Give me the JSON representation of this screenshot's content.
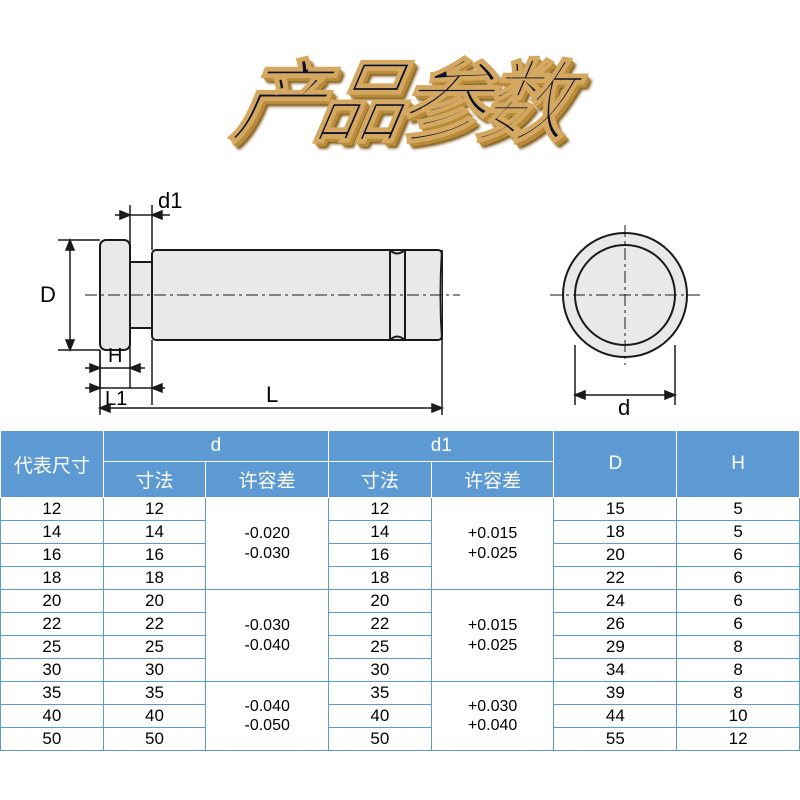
{
  "title": "产品参数",
  "header_color": "#5d9ad4",
  "border_color": "#5d9ad4",
  "title_fill": "#0a0f2a",
  "title_stroke": "#d4a860",
  "diagram": {
    "labels": {
      "D": "D",
      "d1": "d1",
      "H": "H",
      "L1": "L1",
      "L": "L",
      "d": "d"
    },
    "shape_fill": "#e9e9e9",
    "shape_stroke": "#1a1a1a",
    "dim_color": "#1a1a1a"
  },
  "table": {
    "headers": {
      "label": "代表尺寸",
      "d": "d",
      "d1": "d1",
      "val": "寸法",
      "tol": "许容差",
      "D": "D",
      "H": "H"
    },
    "groups": [
      {
        "d_tol_upper": "-0.020",
        "d_tol_lower": "-0.030",
        "d1_tol_upper": "+0.015",
        "d1_tol_lower": "+0.025",
        "rows": [
          {
            "label": "12",
            "d": "12",
            "d1": "12",
            "D": "15",
            "H": "5"
          },
          {
            "label": "14",
            "d": "14",
            "d1": "14",
            "D": "18",
            "H": "5"
          },
          {
            "label": "16",
            "d": "16",
            "d1": "16",
            "D": "20",
            "H": "6"
          },
          {
            "label": "18",
            "d": "18",
            "d1": "18",
            "D": "22",
            "H": "6"
          }
        ]
      },
      {
        "d_tol_upper": "-0.030",
        "d_tol_lower": "-0.040",
        "d1_tol_upper": "+0.015",
        "d1_tol_lower": "+0.025",
        "rows": [
          {
            "label": "20",
            "d": "20",
            "d1": "20",
            "D": "24",
            "H": "6"
          },
          {
            "label": "22",
            "d": "22",
            "d1": "22",
            "D": "26",
            "H": "6"
          },
          {
            "label": "25",
            "d": "25",
            "d1": "25",
            "D": "29",
            "H": "8"
          },
          {
            "label": "30",
            "d": "30",
            "d1": "30",
            "D": "34",
            "H": "8"
          }
        ]
      },
      {
        "d_tol_upper": "-0.040",
        "d_tol_lower": "-0.050",
        "d1_tol_upper": "+0.030",
        "d1_tol_lower": "+0.040",
        "rows": [
          {
            "label": "35",
            "d": "35",
            "d1": "35",
            "D": "39",
            "H": "8"
          },
          {
            "label": "40",
            "d": "40",
            "d1": "40",
            "D": "44",
            "H": "10"
          },
          {
            "label": "50",
            "d": "50",
            "d1": "50",
            "D": "55",
            "H": "12"
          }
        ]
      }
    ]
  }
}
